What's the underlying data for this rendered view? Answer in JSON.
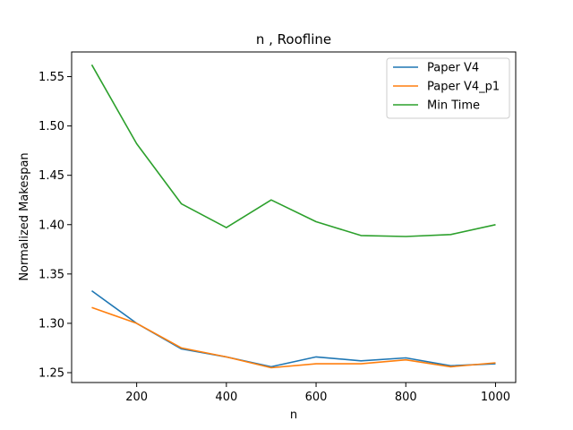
{
  "chart_data": {
    "type": "line",
    "title": "n , Roofline",
    "xlabel": "n",
    "ylabel": "Normalized Makespan",
    "xlim": [
      55,
      1045
    ],
    "ylim": [
      1.24,
      1.575
    ],
    "x_ticks": [
      200,
      400,
      600,
      800,
      1000
    ],
    "y_ticks": [
      1.25,
      1.3,
      1.35,
      1.4,
      1.45,
      1.5,
      1.55
    ],
    "y_tick_labels": [
      "1.25",
      "1.30",
      "1.35",
      "1.40",
      "1.45",
      "1.50",
      "1.55"
    ],
    "grid": false,
    "legend_position": "top-right",
    "x": [
      100,
      200,
      300,
      400,
      500,
      600,
      700,
      800,
      900,
      1000
    ],
    "series": [
      {
        "name": "Paper V4",
        "color": "#1f77b4",
        "values": [
          1.333,
          1.3,
          1.274,
          1.266,
          1.256,
          1.266,
          1.262,
          1.265,
          1.257,
          1.259
        ]
      },
      {
        "name": "Paper V4_p1",
        "color": "#ff7f0e",
        "values": [
          1.316,
          1.3,
          1.275,
          1.266,
          1.255,
          1.259,
          1.259,
          1.263,
          1.256,
          1.26
        ]
      },
      {
        "name": "Min Time",
        "color": "#2ca02c",
        "values": [
          1.562,
          1.482,
          1.421,
          1.397,
          1.425,
          1.403,
          1.389,
          1.388,
          1.39,
          1.4
        ]
      }
    ]
  }
}
